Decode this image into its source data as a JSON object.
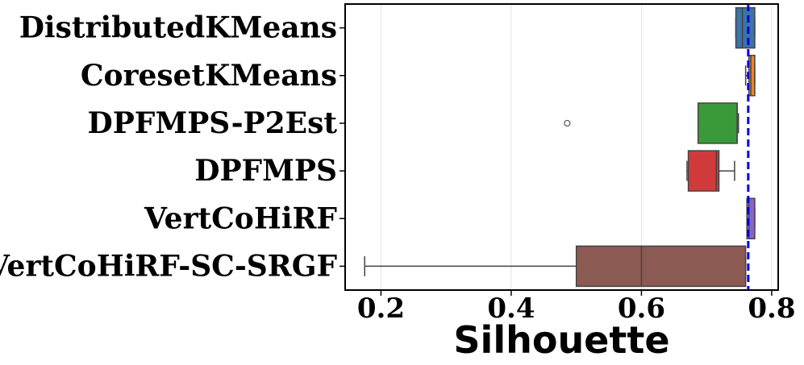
{
  "chart_data": {
    "type": "box",
    "orientation": "horizontal",
    "title": "",
    "xlabel": "Silhouette",
    "ylabel": "",
    "xlim": [
      0.145,
      0.81
    ],
    "xticks": [
      0.2,
      0.4,
      0.6,
      0.8
    ],
    "xtick_labels": [
      "0.2",
      "0.4",
      "0.6",
      "0.8"
    ],
    "grid": "vertical",
    "reference_line": {
      "value": 0.764,
      "color": "#0000dd",
      "style": "dashed"
    },
    "categories": [
      "DistributedKMeans",
      "CoresetKMeans",
      "DPFMPS-P2Est",
      "DPFMPS",
      "VertCoHiRF",
      "VertCoHiRF-SC-SRGF"
    ],
    "boxes": [
      {
        "name": "DistributedKMeans",
        "color": "#3a74a8",
        "whisker_low": 0.745,
        "q1": 0.745,
        "median": 0.755,
        "q3": 0.774,
        "whisker_high": 0.774,
        "outliers": []
      },
      {
        "name": "CoresetKMeans",
        "color": "#f08327",
        "whisker_low": 0.76,
        "q1": 0.765,
        "median": 0.768,
        "q3": 0.774,
        "whisker_high": 0.774,
        "outliers": []
      },
      {
        "name": "DPFMPS-P2Est",
        "color": "#3a9a3a",
        "whisker_low": 0.687,
        "q1": 0.687,
        "median": 0.747,
        "q3": 0.747,
        "whisker_high": 0.749,
        "outliers": [
          0.486
        ]
      },
      {
        "name": "DPFMPS",
        "color": "#d03a3a",
        "whisker_low": 0.67,
        "q1": 0.672,
        "median": 0.715,
        "q3": 0.719,
        "whisker_high": 0.743,
        "outliers": []
      },
      {
        "name": "VertCoHiRF",
        "color": "#8a63c9",
        "whisker_low": 0.762,
        "q1": 0.762,
        "median": 0.765,
        "q3": 0.774,
        "whisker_high": 0.774,
        "outliers": []
      },
      {
        "name": "VertCoHiRF-SC-SRGF",
        "color": "#8b5a52",
        "whisker_low": 0.175,
        "q1": 0.5,
        "median": 0.6,
        "q3": 0.76,
        "whisker_high": 0.76,
        "outliers": []
      }
    ]
  }
}
